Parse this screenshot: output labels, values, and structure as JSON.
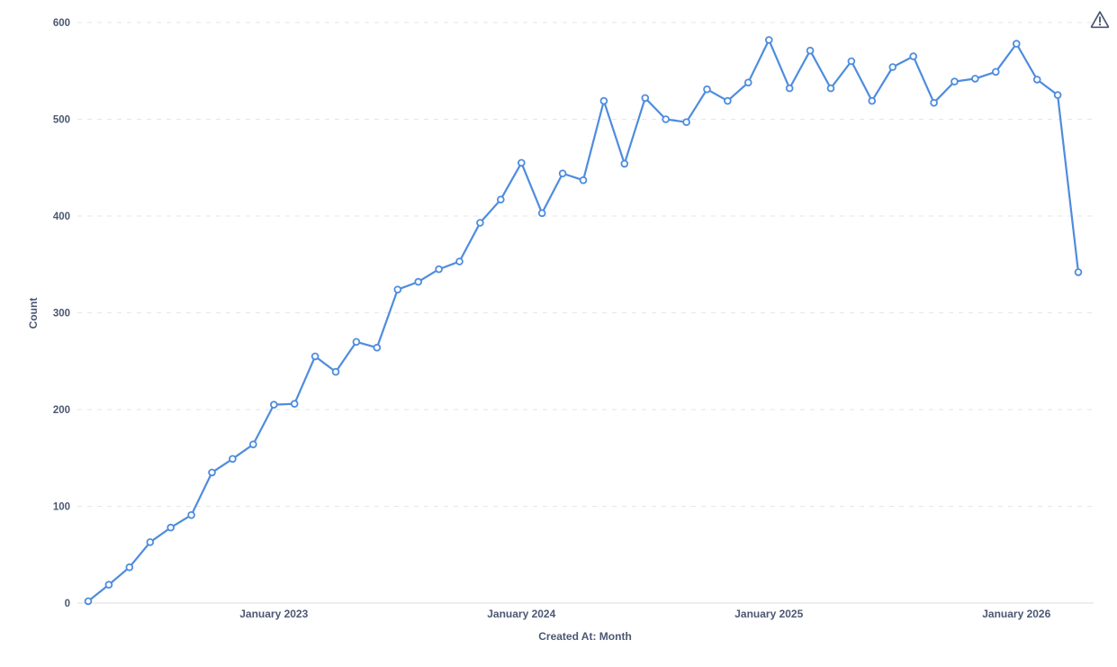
{
  "chart": {
    "xlabel": "Created At: Month",
    "ylabel": "Count"
  },
  "icons": {
    "warning": "warning-triangle-icon"
  },
  "chart_data": {
    "type": "line",
    "title": "",
    "xlabel": "Created At: Month",
    "ylabel": "Count",
    "x_unit": "month",
    "x": [
      "2022-04",
      "2022-05",
      "2022-06",
      "2022-07",
      "2022-08",
      "2022-09",
      "2022-10",
      "2022-11",
      "2022-12",
      "2023-01",
      "2023-02",
      "2023-03",
      "2023-04",
      "2023-05",
      "2023-06",
      "2023-07",
      "2023-08",
      "2023-09",
      "2023-10",
      "2023-11",
      "2023-12",
      "2024-01",
      "2024-02",
      "2024-03",
      "2024-04",
      "2024-05",
      "2024-06",
      "2024-07",
      "2024-08",
      "2024-09",
      "2024-10",
      "2024-11",
      "2024-12",
      "2025-01",
      "2025-02",
      "2025-03",
      "2025-04",
      "2025-05",
      "2025-06",
      "2025-07",
      "2025-08",
      "2025-09",
      "2025-10",
      "2025-11",
      "2025-12",
      "2026-01",
      "2026-02",
      "2026-03",
      "2026-04"
    ],
    "values": [
      2,
      19,
      37,
      63,
      78,
      91,
      135,
      149,
      164,
      205,
      206,
      255,
      239,
      270,
      264,
      324,
      332,
      345,
      353,
      393,
      417,
      455,
      403,
      444,
      437,
      519,
      454,
      522,
      500,
      497,
      531,
      519,
      538,
      582,
      532,
      571,
      532,
      560,
      519,
      554,
      565,
      517,
      539,
      542,
      549,
      578,
      541,
      525,
      342
    ],
    "x_ticks": [
      {
        "index": 9,
        "label": "January 2023"
      },
      {
        "index": 21,
        "label": "January 2024"
      },
      {
        "index": 33,
        "label": "January 2025"
      },
      {
        "index": 45,
        "label": "January 2026"
      }
    ],
    "y_ticks": [
      0,
      100,
      200,
      300,
      400,
      500,
      600
    ],
    "ylim": [
      0,
      600
    ],
    "grid": "dashed-horizontal",
    "legend": "none",
    "marker_style": "open-circle",
    "colors": {
      "line": "#4E8CDE",
      "marker_fill": "#FFFFFF",
      "axis_text": "#4C5773",
      "gridline": "#E6E6E6",
      "axis_line": "#DEDEDE",
      "background": "#FFFFFF",
      "warning_icon": "#4C5773"
    }
  }
}
